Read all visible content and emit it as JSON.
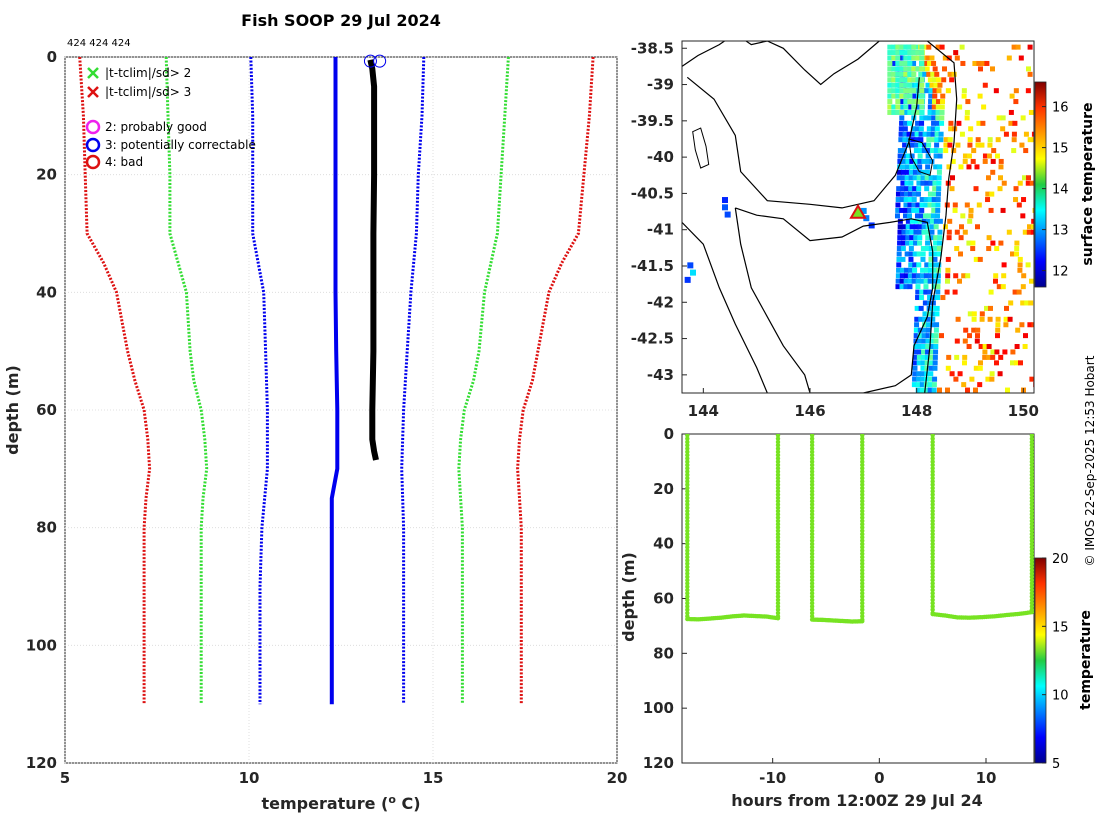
{
  "colors": {
    "green": "#33dd33",
    "red": "#dd1111",
    "blue": "#0000ee",
    "black": "#000000",
    "magenta": "#ee22ee",
    "lime": "#77e322",
    "grid": "#d8d8d8"
  },
  "chart_data": [
    {
      "id": "profile",
      "type": "line",
      "title": "Fish SOOP 29 Jul 2024",
      "header_ids": "424 424 424",
      "xlabel": "temperature (",
      "xlabel_sup": "o",
      "xlabel_end": " C)",
      "ylabel": "depth (m)",
      "xlim": [
        5,
        20
      ],
      "ylim": [
        120,
        0
      ],
      "xticks": [
        5,
        10,
        15,
        20
      ],
      "yticks": [
        0,
        20,
        40,
        60,
        80,
        100,
        120
      ],
      "legend": [
        {
          "marker": "x",
          "color": "green",
          "label": "|t-tclim|/sd> 2"
        },
        {
          "marker": "x",
          "color": "red",
          "label": "|t-tclim|/sd> 3"
        },
        {
          "marker": "o",
          "color": "magenta",
          "label": "2: probably good"
        },
        {
          "marker": "o",
          "color": "blue",
          "label": "3: potentially correctable"
        },
        {
          "marker": "o",
          "color": "red",
          "label": "4: bad"
        }
      ],
      "series": [
        {
          "name": "climatology mean",
          "style": "solid",
          "color": "blue",
          "depth": [
            0,
            10,
            20,
            30,
            40,
            50,
            60,
            70,
            75,
            80,
            90,
            100,
            110
          ],
          "temp": [
            12.35,
            12.35,
            12.35,
            12.35,
            12.35,
            12.37,
            12.4,
            12.4,
            12.25,
            12.25,
            12.25,
            12.25,
            12.25
          ]
        },
        {
          "name": "-1 sd",
          "style": "dotted",
          "color": "blue",
          "depth": [
            0,
            10,
            20,
            30,
            40,
            50,
            60,
            70,
            80,
            90,
            100,
            110
          ],
          "temp": [
            10.05,
            10.1,
            10.1,
            10.1,
            10.4,
            10.45,
            10.5,
            10.5,
            10.35,
            10.3,
            10.3,
            10.3
          ]
        },
        {
          "name": "+1 sd",
          "style": "dotted",
          "color": "blue",
          "depth": [
            0,
            10,
            20,
            30,
            40,
            50,
            60,
            70,
            80,
            90,
            100,
            110
          ],
          "temp": [
            14.75,
            14.7,
            14.6,
            14.55,
            14.4,
            14.3,
            14.2,
            14.15,
            14.2,
            14.2,
            14.2,
            14.2
          ]
        },
        {
          "name": "-2 sd",
          "style": "dotted",
          "color": "green",
          "depth": [
            0,
            10,
            20,
            30,
            40,
            50,
            55,
            60,
            65,
            70,
            75,
            80,
            90,
            100,
            110
          ],
          "temp": [
            7.75,
            7.8,
            7.85,
            7.85,
            8.3,
            8.4,
            8.5,
            8.7,
            8.8,
            8.85,
            8.75,
            8.7,
            8.7,
            8.7,
            8.7
          ]
        },
        {
          "name": "+2 sd",
          "style": "dotted",
          "color": "green",
          "depth": [
            0,
            10,
            20,
            30,
            40,
            50,
            55,
            60,
            65,
            70,
            75,
            80,
            90,
            100,
            110
          ],
          "temp": [
            17.05,
            16.95,
            16.85,
            16.75,
            16.4,
            16.25,
            16.1,
            15.85,
            15.75,
            15.7,
            15.75,
            15.8,
            15.8,
            15.8,
            15.8
          ]
        },
        {
          "name": "-3 sd",
          "style": "dotted",
          "color": "red",
          "depth": [
            0,
            10,
            20,
            30,
            35,
            40,
            50,
            55,
            60,
            65,
            70,
            75,
            80,
            90,
            100,
            110
          ],
          "temp": [
            5.4,
            5.5,
            5.55,
            5.6,
            6.05,
            6.4,
            6.7,
            6.9,
            7.15,
            7.25,
            7.3,
            7.2,
            7.15,
            7.15,
            7.15,
            7.15
          ]
        },
        {
          "name": "+3 sd",
          "style": "dotted",
          "color": "red",
          "depth": [
            0,
            10,
            20,
            30,
            35,
            40,
            50,
            55,
            60,
            65,
            70,
            75,
            80,
            90,
            100,
            110
          ],
          "temp": [
            19.35,
            19.25,
            19.1,
            18.95,
            18.5,
            18.15,
            17.85,
            17.7,
            17.45,
            17.35,
            17.3,
            17.35,
            17.4,
            17.4,
            17.4,
            17.4
          ]
        },
        {
          "name": "observed profiles",
          "style": "thick",
          "color": "black",
          "depth": [
            0.5,
            2,
            5,
            10,
            20,
            30,
            40,
            50,
            60,
            65,
            67,
            68.5
          ],
          "temp": [
            13.3,
            13.35,
            13.4,
            13.4,
            13.4,
            13.38,
            13.38,
            13.38,
            13.35,
            13.35,
            13.4,
            13.45
          ]
        }
      ],
      "flags": [
        {
          "depth": 0.7,
          "temp": 13.3,
          "flag": "3"
        },
        {
          "depth": 0.7,
          "temp": 13.55,
          "flag": "3"
        }
      ]
    },
    {
      "id": "map",
      "type": "heatmap",
      "xlim": [
        143.6,
        150.2
      ],
      "ylim": [
        -43.25,
        -38.4
      ],
      "xticks": [
        144,
        146,
        148,
        150
      ],
      "yticks": [
        -38.5,
        -39,
        -39.5,
        -40,
        -40.5,
        -41,
        -41.5,
        -42,
        -42.5,
        -43
      ],
      "xtick_labels": [
        "144",
        "146",
        "148",
        "150"
      ],
      "ytick_labels": [
        "-38.5",
        "-39",
        "-39.5",
        "-40",
        "-40.5",
        "-41",
        "-41.5",
        "-42",
        "-42.5",
        "-43"
      ],
      "colorbar_label": "surface temperature",
      "colorbar_ticks": [
        12,
        13,
        14,
        15,
        16
      ],
      "colorbar_range": [
        11.6,
        16.6
      ],
      "position_marker": {
        "lon": 146.9,
        "lat": -40.78
      }
    },
    {
      "id": "section",
      "type": "scatter",
      "xlabel": "hours from 12:00Z 29 Jul 24",
      "ylabel": "depth (m)",
      "xlim": [
        -18.5,
        14.5
      ],
      "ylim": [
        120,
        0
      ],
      "xticks": [
        -10,
        0,
        10
      ],
      "yticks": [
        0,
        20,
        40,
        60,
        80,
        100,
        120
      ],
      "colorbar_label": "temperature",
      "colorbar_ticks": [
        5,
        10,
        15,
        20
      ],
      "colorbar_range": [
        5,
        20
      ],
      "profiles": [
        {
          "t0": -18.0,
          "t1": -9.5,
          "bottom": [
            67.5,
            67.6,
            67.3,
            67.0,
            66.5,
            66.2,
            66.4,
            66.6,
            67.2
          ]
        },
        {
          "t0": -6.3,
          "t1": -1.6,
          "bottom": [
            67.7,
            67.8,
            68.0,
            68.2,
            68.4,
            68.3
          ]
        },
        {
          "t0": 5.0,
          "t1": 14.3,
          "bottom": [
            65.7,
            66.2,
            66.9,
            67.0,
            66.8,
            66.5,
            66.0,
            65.6,
            65.0
          ]
        }
      ]
    }
  ],
  "credit": "© IMOS 22-Sep-2025 12:53 Hobart"
}
